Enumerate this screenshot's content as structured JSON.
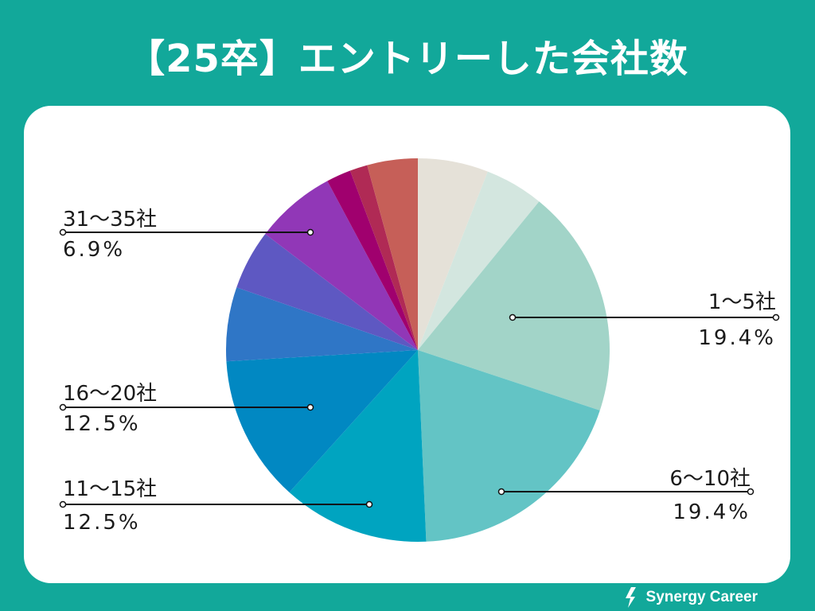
{
  "title": "【25卒】エントリーした会社数",
  "brand": {
    "name": "Synergy Career",
    "icon": "synergy-logo-icon"
  },
  "chart_data": {
    "type": "pie",
    "title": "【25卒】エントリーした会社数",
    "slices": [
      {
        "value": 6.0,
        "color": "#e5e1d8"
      },
      {
        "value": 5.0,
        "color": "#d3e6df"
      },
      {
        "value": 19.4,
        "color": "#a2d4c8",
        "category": "1〜5社",
        "percent_label": "19.4%"
      },
      {
        "value": 19.4,
        "color": "#63c4c5",
        "category": "6〜10社",
        "percent_label": "19.4%"
      },
      {
        "value": 12.5,
        "color": "#00a4c0",
        "category": "11〜15社",
        "percent_label": "12.5%"
      },
      {
        "value": 12.5,
        "color": "#0188c2",
        "category": "16〜20社",
        "percent_label": "12.5%"
      },
      {
        "value": 6.3,
        "color": "#2f76c6"
      },
      {
        "value": 5.1,
        "color": "#5e58c2"
      },
      {
        "value": 6.9,
        "color": "#9137b7",
        "category": "31〜35社",
        "percent_label": "6.9%"
      },
      {
        "value": 2.1,
        "color": "#a0006e"
      },
      {
        "value": 1.5,
        "color": "#b02a55"
      },
      {
        "value": 4.3,
        "color": "#c65f58"
      }
    ]
  }
}
